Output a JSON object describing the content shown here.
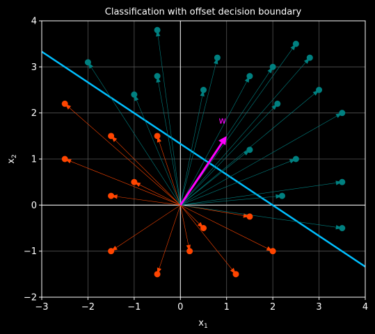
{
  "chart_data": {
    "type": "scatter",
    "title": "Classification with offset decision boundary",
    "xlabel": "x",
    "xlabel_sub": "1",
    "ylabel": "x",
    "ylabel_sub": "2",
    "xlim": [
      -3,
      4
    ],
    "ylim": [
      -2,
      4
    ],
    "xticks": [
      -3,
      -2,
      -1,
      0,
      1,
      2,
      3,
      4
    ],
    "yticks": [
      -2,
      -1,
      0,
      1,
      2,
      3,
      4
    ],
    "xtick_labels": [
      "−3",
      "−2",
      "−1",
      "0",
      "1",
      "2",
      "3",
      "4"
    ],
    "ytick_labels": [
      "−2",
      "−1",
      "0",
      "1",
      "2",
      "3",
      "4"
    ],
    "grid": true,
    "background": "#000000",
    "weight_vector": {
      "label": "w",
      "x": 1.0,
      "y": 1.5,
      "color": "#ff00ff"
    },
    "decision_boundary": {
      "slope": -0.667,
      "intercept": 1.33,
      "color": "#00bfff"
    },
    "positive": {
      "color": "#008080",
      "points": [
        [
          -0.5,
          3.8
        ],
        [
          -2.0,
          3.1
        ],
        [
          -1.0,
          2.4
        ],
        [
          -0.5,
          2.8
        ],
        [
          0.5,
          2.5
        ],
        [
          0.8,
          3.2
        ],
        [
          1.5,
          2.8
        ],
        [
          2.0,
          3.0
        ],
        [
          2.5,
          3.5
        ],
        [
          2.8,
          3.2
        ],
        [
          2.1,
          2.2
        ],
        [
          3.0,
          2.5
        ],
        [
          3.5,
          2.0
        ],
        [
          1.5,
          1.2
        ],
        [
          2.5,
          1.0
        ],
        [
          3.5,
          0.5
        ],
        [
          2.2,
          0.2
        ],
        [
          3.5,
          -0.5
        ]
      ]
    },
    "negative": {
      "color": "#ff4500",
      "points": [
        [
          -2.5,
          2.2
        ],
        [
          -1.5,
          1.5
        ],
        [
          -0.5,
          1.5
        ],
        [
          -2.5,
          1.0
        ],
        [
          -1.0,
          0.5
        ],
        [
          -1.5,
          0.2
        ],
        [
          0.5,
          -0.5
        ],
        [
          1.5,
          -0.25
        ],
        [
          2.0,
          -1.0
        ],
        [
          0.2,
          -1.0
        ],
        [
          1.2,
          -1.5
        ],
        [
          -0.5,
          -1.5
        ],
        [
          -1.5,
          -1.0
        ]
      ]
    }
  }
}
